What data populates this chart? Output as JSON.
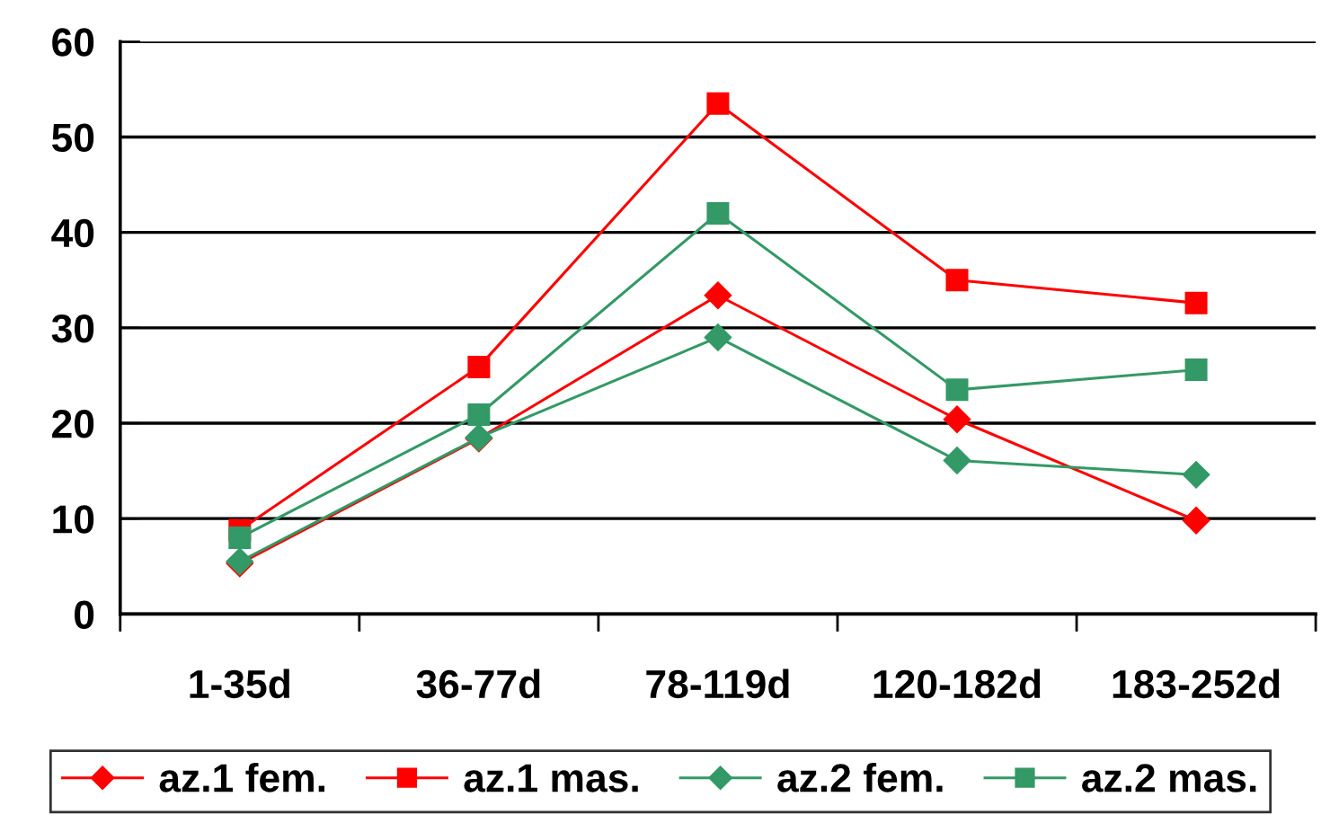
{
  "chart_data": {
    "type": "line",
    "categories": [
      "1-35d",
      "36-77d",
      "78-119d",
      "120-182d",
      "183-252d"
    ],
    "series": [
      {
        "name": "az.1 fem.",
        "color": "#ff0000",
        "marker": "diamond",
        "values": [
          5.3,
          18.4,
          33.4,
          20.4,
          9.8
        ]
      },
      {
        "name": "az.1 mas.",
        "color": "#ff0000",
        "marker": "square",
        "values": [
          8.8,
          25.9,
          53.5,
          35.0,
          32.6
        ]
      },
      {
        "name": "az.2 fem.",
        "color": "#339966",
        "marker": "diamond",
        "values": [
          5.5,
          18.5,
          29.0,
          16.1,
          14.6
        ]
      },
      {
        "name": "az.2 mas.",
        "color": "#339966",
        "marker": "square",
        "values": [
          8.0,
          20.9,
          42.0,
          23.5,
          25.6
        ]
      }
    ],
    "ylim": [
      0,
      60
    ],
    "yticks": [
      0,
      10,
      20,
      30,
      40,
      50,
      60
    ],
    "grid": "y",
    "legend": "bottom",
    "line_style": "solid"
  }
}
